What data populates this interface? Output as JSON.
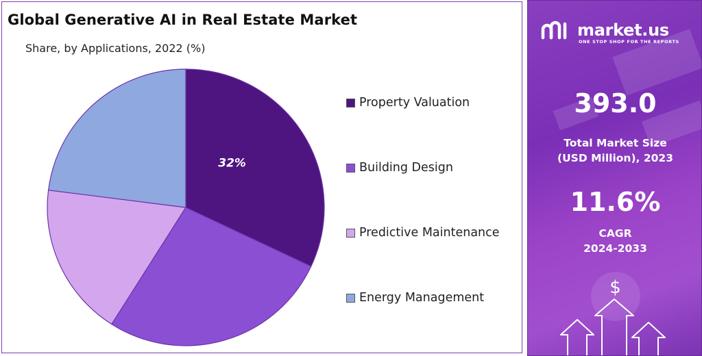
{
  "header": {
    "title": "Global Generative AI in Real Estate Market",
    "subtitle": "Share, by Applications, 2022 (%)"
  },
  "chart_data": {
    "type": "pie",
    "title": "Global Generative AI in Real Estate Market",
    "subtitle": "Share, by Applications, 2022 (%)",
    "categories": [
      "Property Valuation",
      "Building Design",
      "Predictive Maintenance",
      "Energy Management"
    ],
    "values": [
      32,
      27,
      18,
      23
    ],
    "colors": [
      "#4e1580",
      "#8b4fd3",
      "#d4a6ee",
      "#8fa8e0"
    ],
    "data_labels": [
      "32%",
      "",
      "",
      ""
    ],
    "legend_position": "right"
  },
  "sidebar": {
    "brand_name": "market.us",
    "brand_tagline": "ONE STOP SHOP FOR THE REPORTS",
    "market_size_value": "393.0",
    "market_size_label_line1": "Total Market Size",
    "market_size_label_line2": "(USD Million), 2023",
    "cagr_value": "11.6%",
    "cagr_label_line1": "CAGR",
    "cagr_label_line2": "2024-2033",
    "dollar_symbol": "$",
    "icons": [
      "market-us-logo-icon",
      "dollar-icon",
      "arrow-up-icon"
    ]
  }
}
